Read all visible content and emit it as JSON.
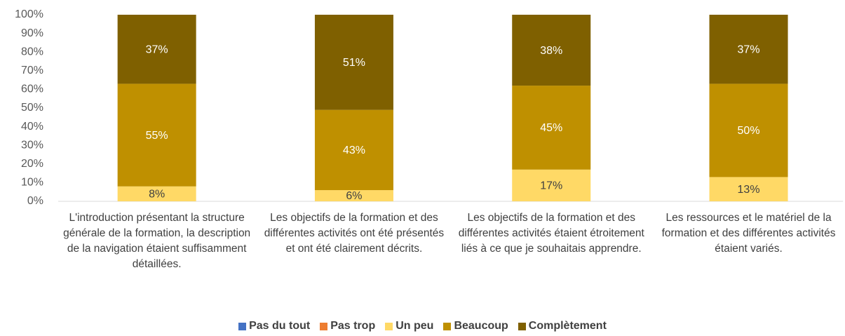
{
  "chart_data": {
    "type": "stacked_bar",
    "categories": [
      "L'introduction présentant la structure générale de la formation, la description de la navigation étaient suffisamment détaillées.",
      "Les objectifs de la formation et des différentes activités ont été présentés et ont été clairement décrits.",
      "Les objectifs de la formation et des différentes activités étaient étroitement liés à ce que je souhaitais apprendre.",
      "Les ressources et le matériel de la formation et des différentes activités étaient variés."
    ],
    "series": [
      {
        "name": "Pas du tout",
        "color": "#4472c4",
        "values": [
          0,
          0,
          0,
          0
        ]
      },
      {
        "name": "Pas trop",
        "color": "#ed7d31",
        "values": [
          0,
          0,
          0,
          0
        ]
      },
      {
        "name": "Un peu",
        "color": "#ffd966",
        "values": [
          8,
          6,
          17,
          13
        ],
        "value_labels": [
          "8%",
          "6%",
          "17%",
          "13%"
        ]
      },
      {
        "name": "Beaucoup",
        "color": "#bf9000",
        "values": [
          55,
          43,
          45,
          50
        ],
        "value_labels": [
          "55%",
          "43%",
          "45%",
          "50%"
        ]
      },
      {
        "name": "Complètement",
        "color": "#7f6000",
        "values": [
          37,
          51,
          38,
          37
        ],
        "value_labels": [
          "37%",
          "51%",
          "38%",
          "37%"
        ]
      }
    ],
    "ylim": [
      0,
      100
    ],
    "yticks": [
      {
        "value": 0,
        "label": "0%"
      },
      {
        "value": 10,
        "label": "10%"
      },
      {
        "value": 20,
        "label": "20%"
      },
      {
        "value": 30,
        "label": "30%"
      },
      {
        "value": 40,
        "label": "40%"
      },
      {
        "value": 50,
        "label": "50%"
      },
      {
        "value": 60,
        "label": "60%"
      },
      {
        "value": 70,
        "label": "70%"
      },
      {
        "value": 80,
        "label": "80%"
      },
      {
        "value": 90,
        "label": "90%"
      },
      {
        "value": 100,
        "label": "100%"
      }
    ],
    "legend": "bottom"
  }
}
